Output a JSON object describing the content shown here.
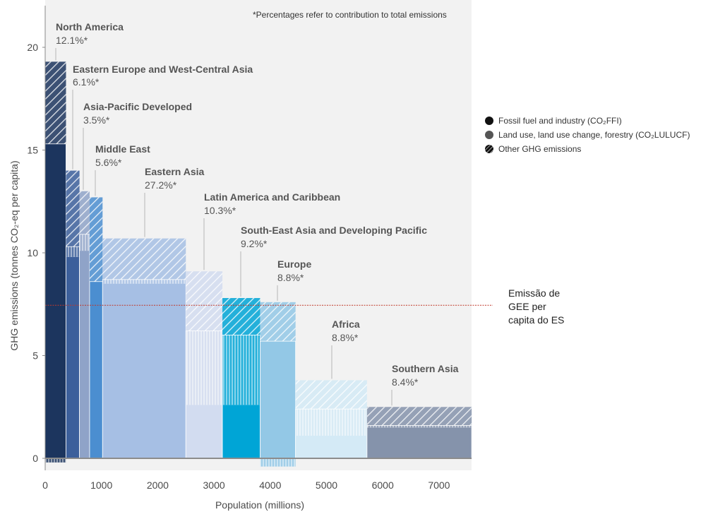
{
  "chart_data": {
    "type": "bar",
    "subtype": "variable-width stacked bar",
    "note": "*Percentages refer to contribution to total emissions",
    "xlabel": "Population (millions)",
    "ylabel": "GHG emissions (tonnes CO₂-eq per capita)",
    "xlim": [
      0,
      7600
    ],
    "ylim": [
      -0.5,
      21
    ],
    "xticks": [
      0,
      1000,
      2000,
      3000,
      4000,
      5000,
      6000,
      7000
    ],
    "yticks": [
      0,
      5,
      10,
      15,
      20
    ],
    "grid": false,
    "legend_position": "right",
    "legend": [
      {
        "label": "Fossil fuel and industry (CO₂FFI)",
        "pattern": "solid"
      },
      {
        "label": "Land use, land use change, forestry (CO₂LULUCF)",
        "pattern": "vertical-lines"
      },
      {
        "label": "Other GHG emissions",
        "pattern": "diagonal-hatch"
      }
    ],
    "regions": [
      {
        "name": "North America",
        "pct": "12.1%*",
        "x_start": 0,
        "x_end": 370,
        "co2ffi": 15.3,
        "lulucf": -0.2,
        "other": 4.0,
        "color": "#1c355e"
      },
      {
        "name": "Eastern Europe and West-Central Asia",
        "pct": "6.1%*",
        "x_start": 370,
        "x_end": 610,
        "co2ffi": 9.8,
        "lulucf": 0.5,
        "other": 3.7,
        "color": "#3c5f9b"
      },
      {
        "name": "Asia-Pacific Developed",
        "pct": "3.5%*",
        "x_start": 610,
        "x_end": 790,
        "co2ffi": 10.1,
        "lulucf": 0.8,
        "other": 2.1,
        "color": "#8fa3c8"
      },
      {
        "name": "Middle East",
        "pct": "5.6%*",
        "x_start": 790,
        "x_end": 1020,
        "co2ffi": 8.6,
        "lulucf": 0.0,
        "other": 4.1,
        "color": "#4b8ed0"
      },
      {
        "name": "Eastern Asia",
        "pct": "27.2%*",
        "x_start": 1020,
        "x_end": 2500,
        "co2ffi": 8.5,
        "lulucf": 0.2,
        "other": 2.0,
        "color": "#a6bfe4"
      },
      {
        "name": "Latin America and Caribbean",
        "pct": "10.3%*",
        "x_start": 2500,
        "x_end": 3150,
        "co2ffi": 2.6,
        "lulucf": 3.6,
        "other": 2.9,
        "color": "#d2dcf0"
      },
      {
        "name": "South-East Asia and Developing Pacific",
        "pct": "9.2%*",
        "x_start": 3150,
        "x_end": 3820,
        "co2ffi": 2.6,
        "lulucf": 3.4,
        "other": 1.8,
        "color": "#00a5d6"
      },
      {
        "name": "Europe",
        "pct": "8.8%*",
        "x_start": 3820,
        "x_end": 4450,
        "co2ffi": 5.7,
        "lulucf": -0.4,
        "other": 1.9,
        "color": "#93c8e6"
      },
      {
        "name": "Africa",
        "pct": "8.8%*",
        "x_start": 4450,
        "x_end": 5720,
        "co2ffi": 1.1,
        "lulucf": 1.3,
        "other": 1.4,
        "color": "#d4eaf6"
      },
      {
        "name": "Southern Asia",
        "pct": "8.4%*",
        "x_start": 5720,
        "x_end": 7580,
        "co2ffi": 1.5,
        "lulucf": 0.1,
        "other": 0.9,
        "color": "#8593ab"
      }
    ],
    "reference_line": {
      "y": 7.45,
      "label_lines": [
        "Emissão de",
        "GEE per",
        "capita do ES"
      ],
      "color": "#c0392b"
    }
  }
}
